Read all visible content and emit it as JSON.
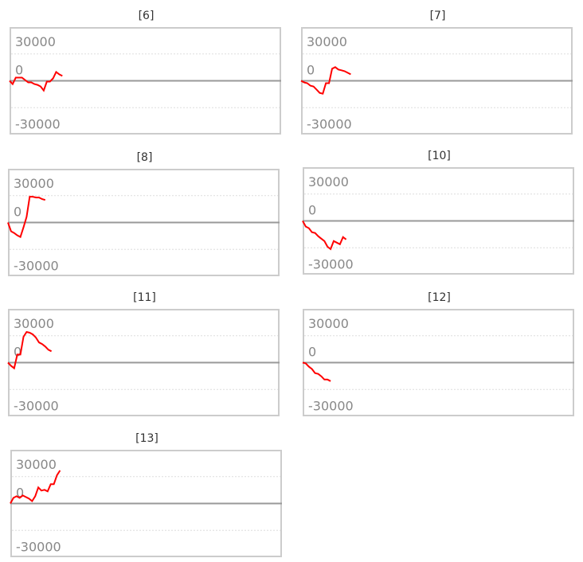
{
  "chart_data": [
    {
      "type": "line",
      "title": "[6]",
      "ylim": [
        -60000,
        60000
      ],
      "yticks": [
        "30000",
        "0",
        "-30000"
      ],
      "color": "#ff0000",
      "values": [
        0,
        -3600,
        3600,
        3600,
        3600,
        900,
        -1800,
        -1800,
        -3600,
        -4500,
        -6300,
        -10800,
        -900,
        -900,
        2700,
        9900,
        7200,
        5400
      ]
    },
    {
      "type": "line",
      "title": "[7]",
      "ylim": [
        -60000,
        60000
      ],
      "yticks": [
        "30000",
        "0",
        "-30000"
      ],
      "color": "#ff0000",
      "values": [
        0,
        -1800,
        -2700,
        -5400,
        -6300,
        -9900,
        -13500,
        -14400,
        -2700,
        -2700,
        13500,
        15300,
        12600,
        11700,
        10800,
        9000,
        7200
      ]
    },
    {
      "type": "line",
      "title": "[8]",
      "ylim": [
        -60000,
        60000
      ],
      "yticks": [
        "30000",
        "0",
        "-30000"
      ],
      "color": "#ff0000",
      "values": [
        0,
        -9900,
        -11700,
        -14400,
        -16200,
        -5400,
        6300,
        28800,
        28800,
        27900,
        27900,
        26100,
        25200
      ]
    },
    {
      "type": "line",
      "title": "[10]",
      "ylim": [
        -60000,
        60000
      ],
      "yticks": [
        "30000",
        "0",
        "-30000"
      ],
      "color": "#ff0000",
      "values": [
        0,
        -6300,
        -8100,
        -12600,
        -13500,
        -17100,
        -19800,
        -22500,
        -28800,
        -31500,
        -22500,
        -24300,
        -26100,
        -18000,
        -20700
      ]
    },
    {
      "type": "line",
      "title": "[11]",
      "ylim": [
        -60000,
        60000
      ],
      "yticks": [
        "30000",
        "0",
        "-30000"
      ],
      "color": "#ff0000",
      "values": [
        0,
        -3600,
        -6300,
        9000,
        9000,
        28800,
        34200,
        33300,
        31500,
        27900,
        22500,
        20700,
        18000,
        14400,
        12600
      ]
    },
    {
      "type": "line",
      "title": "[12]",
      "ylim": [
        -60000,
        60000
      ],
      "yticks": [
        "30000",
        "0",
        "-30000"
      ],
      "color": "#ff0000",
      "values": [
        0,
        -900,
        -4500,
        -7200,
        -11700,
        -12600,
        -15300,
        -18900,
        -18900,
        -20700
      ]
    },
    {
      "type": "line",
      "title": "[13]",
      "ylim": [
        -60000,
        60000
      ],
      "yticks": [
        "30000",
        "0",
        "-30000"
      ],
      "color": "#ff0000",
      "values": [
        0,
        6300,
        8100,
        6300,
        9000,
        7200,
        5400,
        2700,
        8100,
        18000,
        14400,
        15300,
        13500,
        21600,
        21600,
        31500,
        36900
      ]
    }
  ]
}
